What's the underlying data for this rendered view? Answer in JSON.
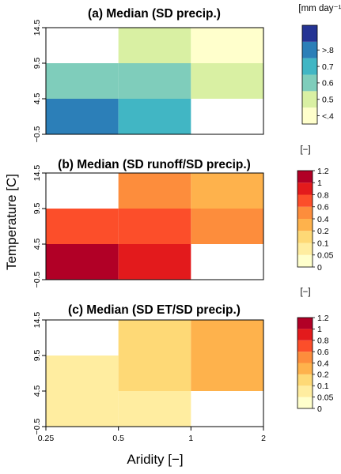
{
  "figure": {
    "y_axis_label": "Temperature [C]",
    "x_axis_label": "Aridity [−]"
  },
  "chart_data": [
    {
      "type": "heatmap",
      "title": "(a) Median (SD precip.)",
      "legend_unit": "[mm day⁻¹]",
      "x_edges": [
        0.25,
        0.5,
        1,
        2
      ],
      "x_tick_labels": [
        "0.25",
        "0.5",
        "1",
        "2"
      ],
      "y_edges": [
        -0.5,
        4.5,
        9.5,
        14.5
      ],
      "y_tick_labels": [
        "−0.5",
        "4.5",
        "9.5",
        "14.5"
      ],
      "legend_boundaries": [
        0.35,
        0.4,
        0.5,
        0.6,
        0.7,
        0.8,
        0.9
      ],
      "legend_labels": [
        "<.4",
        "0.5",
        "0.6",
        "0.7",
        ">.8"
      ],
      "legend_colors": [
        "#ffffcc",
        "#d9f0a3",
        "#7fcdbb",
        "#41b6c4",
        "#2c7fb8",
        "#253494"
      ],
      "cells": [
        {
          "x": [
            0.25,
            0.5
          ],
          "y": [
            -0.5,
            4.5
          ],
          "value": 0.75
        },
        {
          "x": [
            0.5,
            1
          ],
          "y": [
            -0.5,
            4.5
          ],
          "value": 0.65
        },
        {
          "x": [
            0.25,
            0.5
          ],
          "y": [
            4.5,
            9.5
          ],
          "value": 0.55
        },
        {
          "x": [
            0.5,
            1
          ],
          "y": [
            4.5,
            9.5
          ],
          "value": 0.55
        },
        {
          "x": [
            1,
            2
          ],
          "y": [
            4.5,
            9.5
          ],
          "value": 0.45
        },
        {
          "x": [
            0.5,
            1
          ],
          "y": [
            9.5,
            14.5
          ],
          "value": 0.45
        },
        {
          "x": [
            1,
            2
          ],
          "y": [
            9.5,
            14.5
          ],
          "value": 0.38
        }
      ]
    },
    {
      "type": "heatmap",
      "title": "(b) Median (SD runoff/SD precip.)",
      "legend_unit": "[−]",
      "x_edges": [
        0.25,
        0.5,
        1,
        2
      ],
      "x_tick_labels": [
        "0.25",
        "0.5",
        "1",
        "2"
      ],
      "y_edges": [
        -0.5,
        4.5,
        9.5,
        14.5
      ],
      "y_tick_labels": [
        "−0.5",
        "4.5",
        "9.5",
        "14.5"
      ],
      "legend_boundaries": [
        0,
        0.05,
        0.1,
        0.2,
        0.4,
        0.6,
        0.8,
        1,
        1.2
      ],
      "legend_labels": [
        "0",
        "0.05",
        "0.1",
        "0.2",
        "0.4",
        "0.6",
        "0.8",
        "1",
        "1.2"
      ],
      "legend_colors": [
        "#ffffcc",
        "#ffeda0",
        "#fed976",
        "#feb24c",
        "#fd8d3c",
        "#fc4e2a",
        "#e31a1c",
        "#b10026"
      ],
      "cells": [
        {
          "x": [
            0.25,
            0.5
          ],
          "y": [
            -0.5,
            4.5
          ],
          "value": 1.1
        },
        {
          "x": [
            0.5,
            1
          ],
          "y": [
            -0.5,
            4.5
          ],
          "value": 0.9
        },
        {
          "x": [
            0.25,
            0.5
          ],
          "y": [
            4.5,
            9.5
          ],
          "value": 0.7
        },
        {
          "x": [
            0.5,
            1
          ],
          "y": [
            4.5,
            9.5
          ],
          "value": 0.7
        },
        {
          "x": [
            1,
            2
          ],
          "y": [
            4.5,
            9.5
          ],
          "value": 0.5
        },
        {
          "x": [
            0.5,
            1
          ],
          "y": [
            9.5,
            14.5
          ],
          "value": 0.5
        },
        {
          "x": [
            1,
            2
          ],
          "y": [
            9.5,
            14.5
          ],
          "value": 0.3
        }
      ]
    },
    {
      "type": "heatmap",
      "title": "(c) Median (SD ET/SD precip.)",
      "legend_unit": "[−]",
      "x_edges": [
        0.25,
        0.5,
        1,
        2
      ],
      "x_tick_labels": [
        "0.25",
        "0.5",
        "1",
        "2"
      ],
      "y_edges": [
        -0.5,
        4.5,
        9.5,
        14.5
      ],
      "y_tick_labels": [
        "−0.5",
        "4.5",
        "9.5",
        "14.5"
      ],
      "legend_boundaries": [
        0,
        0.05,
        0.1,
        0.2,
        0.4,
        0.6,
        0.8,
        1,
        1.2
      ],
      "legend_labels": [
        "0",
        "0.05",
        "0.1",
        "0.2",
        "0.4",
        "0.6",
        "0.8",
        "1",
        "1.2"
      ],
      "legend_colors": [
        "#ffffcc",
        "#ffeda0",
        "#fed976",
        "#feb24c",
        "#fd8d3c",
        "#fc4e2a",
        "#e31a1c",
        "#b10026"
      ],
      "cells": [
        {
          "x": [
            0.25,
            0.5
          ],
          "y": [
            -0.5,
            4.5
          ],
          "value": 0.08
        },
        {
          "x": [
            0.5,
            1
          ],
          "y": [
            -0.5,
            4.5
          ],
          "value": 0.08
        },
        {
          "x": [
            0.25,
            0.5
          ],
          "y": [
            4.5,
            9.5
          ],
          "value": 0.08
        },
        {
          "x": [
            0.5,
            1
          ],
          "y": [
            4.5,
            9.5
          ],
          "value": 0.15
        },
        {
          "x": [
            1,
            2
          ],
          "y": [
            4.5,
            9.5
          ],
          "value": 0.3
        },
        {
          "x": [
            0.5,
            1
          ],
          "y": [
            9.5,
            14.5
          ],
          "value": 0.15
        },
        {
          "x": [
            1,
            2
          ],
          "y": [
            9.5,
            14.5
          ],
          "value": 0.3
        }
      ]
    }
  ]
}
